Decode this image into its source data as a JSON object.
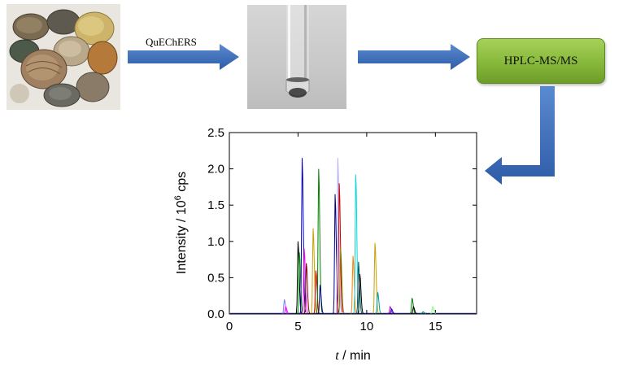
{
  "workflow": {
    "step1_label": "QuEChERS",
    "instrument_label": "HPLC-MS/MS"
  },
  "colors": {
    "arrow": "#3b6db5",
    "instrument_box": "#8dbd3f"
  },
  "icons": [
    "clams-photo",
    "test-tube-photo"
  ],
  "chart_data": {
    "type": "line",
    "xlabel_italic": "t",
    "xlabel_rest": " / min",
    "ylabel_main": "Intensity / 10",
    "ylabel_sup": "6",
    "ylabel_unit": " cps",
    "xlim": [
      0,
      18
    ],
    "ylim": [
      0,
      2.5
    ],
    "x_ticks": [
      "0",
      "5",
      "10",
      "15"
    ],
    "x_tick_values": [
      0,
      5,
      10,
      15
    ],
    "y_ticks": [
      "0.0",
      "0.5",
      "1.0",
      "1.5",
      "2.0",
      "2.5"
    ],
    "y_tick_values": [
      0,
      0.5,
      1.0,
      1.5,
      2.0,
      2.5
    ],
    "peaks": [
      {
        "x": 4.0,
        "y": 0.2,
        "color": "#7b7bff"
      },
      {
        "x": 4.1,
        "y": 0.1,
        "color": "#ff00ff"
      },
      {
        "x": 5.0,
        "y": 1.0,
        "color": "#000000"
      },
      {
        "x": 5.1,
        "y": 0.85,
        "color": "#00a000"
      },
      {
        "x": 5.3,
        "y": 2.15,
        "color": "#0000cc"
      },
      {
        "x": 5.45,
        "y": 0.9,
        "color": "#ff00ff"
      },
      {
        "x": 5.6,
        "y": 0.7,
        "color": "#800000"
      },
      {
        "x": 6.1,
        "y": 1.18,
        "color": "#c8a000"
      },
      {
        "x": 6.3,
        "y": 0.6,
        "color": "#cc0000"
      },
      {
        "x": 6.5,
        "y": 2.0,
        "color": "#008000"
      },
      {
        "x": 6.6,
        "y": 0.4,
        "color": "#000080"
      },
      {
        "x": 7.7,
        "y": 1.65,
        "color": "#000080"
      },
      {
        "x": 7.9,
        "y": 2.15,
        "color": "#b0b0ff"
      },
      {
        "x": 8.0,
        "y": 1.8,
        "color": "#cc0000"
      },
      {
        "x": 8.1,
        "y": 0.9,
        "color": "#808000"
      },
      {
        "x": 9.0,
        "y": 0.8,
        "color": "#ff8000"
      },
      {
        "x": 9.2,
        "y": 1.92,
        "color": "#00d8d8"
      },
      {
        "x": 9.4,
        "y": 0.72,
        "color": "#006060"
      },
      {
        "x": 9.5,
        "y": 0.55,
        "color": "#000000"
      },
      {
        "x": 10.6,
        "y": 0.98,
        "color": "#c8a000"
      },
      {
        "x": 10.8,
        "y": 0.3,
        "color": "#00a0a0"
      },
      {
        "x": 11.7,
        "y": 0.1,
        "color": "#cc00cc"
      },
      {
        "x": 11.8,
        "y": 0.07,
        "color": "#0000cc"
      },
      {
        "x": 13.3,
        "y": 0.22,
        "color": "#008000"
      },
      {
        "x": 13.4,
        "y": 0.1,
        "color": "#000000"
      },
      {
        "x": 14.1,
        "y": 0.03,
        "color": "#008080"
      },
      {
        "x": 14.8,
        "y": 0.1,
        "color": "#80ff80"
      }
    ]
  }
}
